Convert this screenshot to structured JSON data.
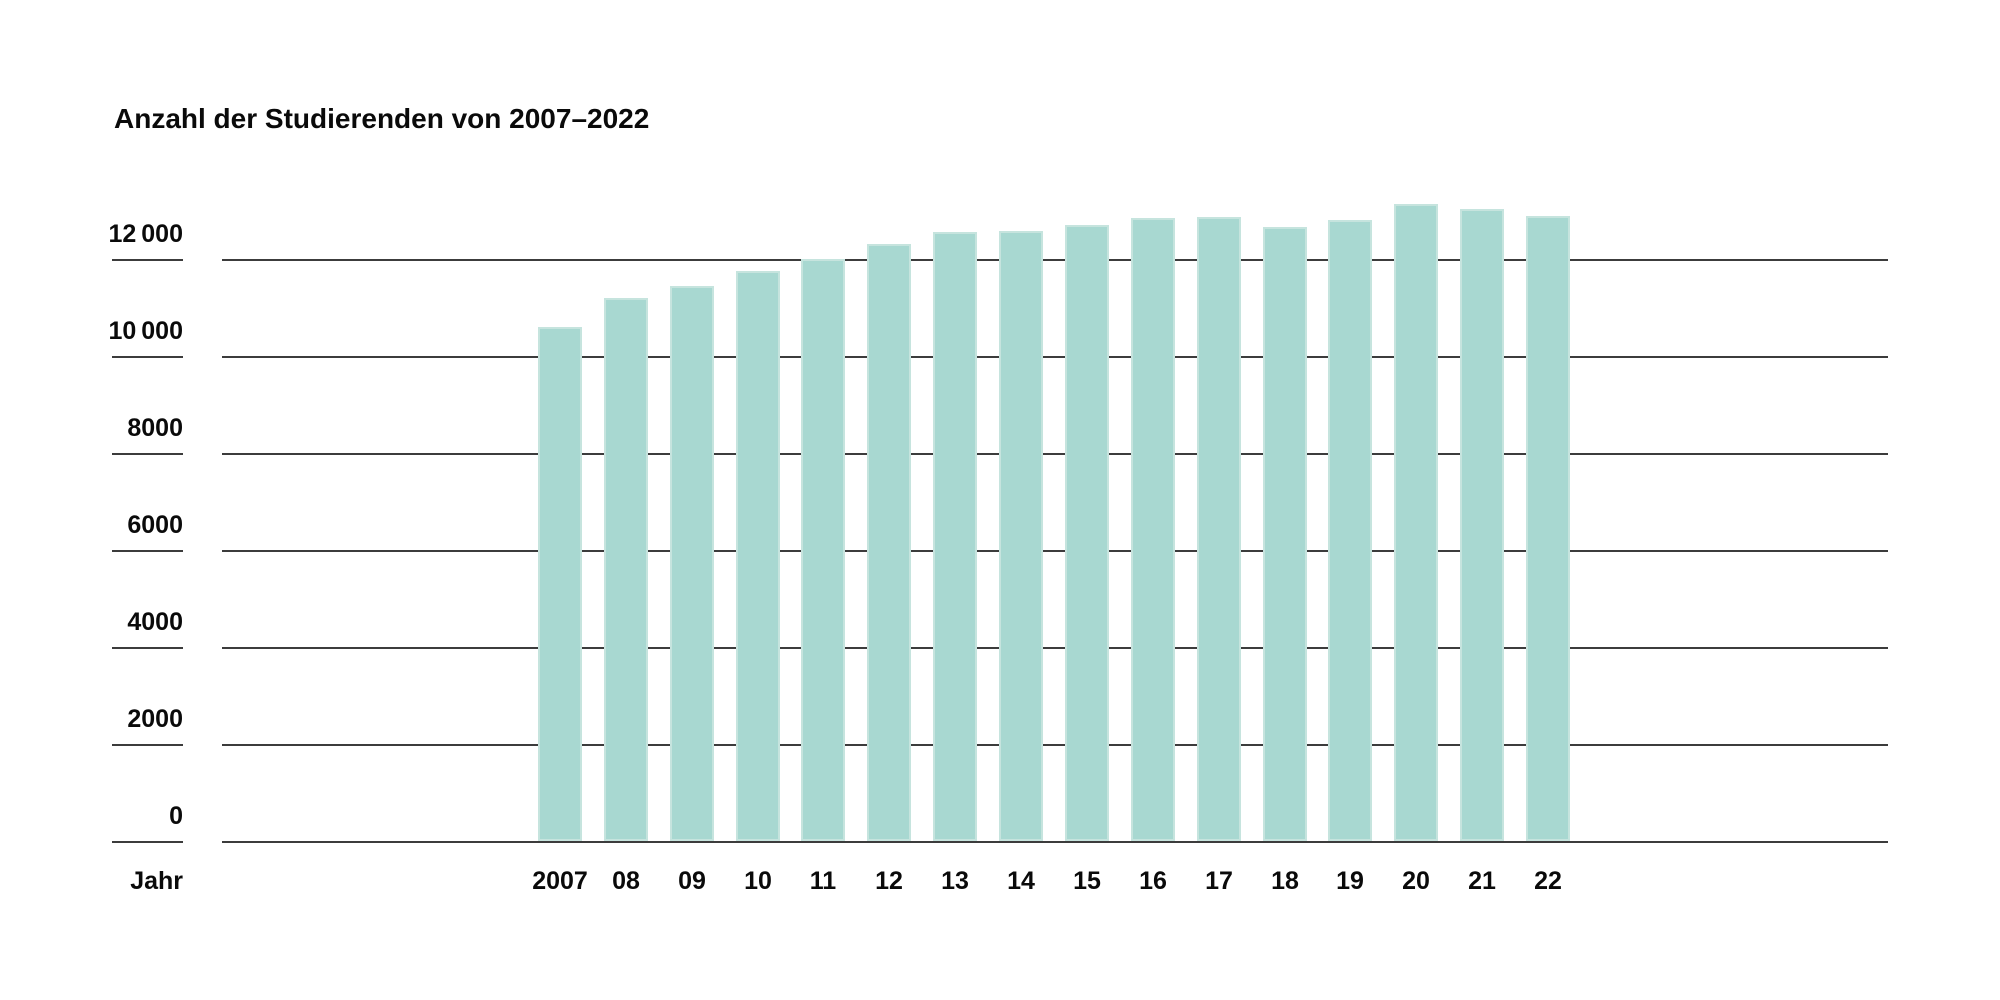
{
  "colors": {
    "background": "#ffffff",
    "text": "#0a0a0a",
    "gridline": "#3c3c3c",
    "bar_fill": "#a8d8d1",
    "bar_edge": "#c6e4de"
  },
  "chart_data": {
    "type": "bar",
    "title": "Anzahl der Studierenden von 2007–2022",
    "xlabel": "Jahr",
    "ylabel": "",
    "categories": [
      "2007",
      "08",
      "09",
      "10",
      "11",
      "12",
      "13",
      "14",
      "15",
      "16",
      "17",
      "18",
      "19",
      "20",
      "21",
      "22"
    ],
    "values": [
      10600,
      11200,
      11450,
      11750,
      12000,
      12300,
      12550,
      12570,
      12700,
      12840,
      12860,
      12660,
      12800,
      13130,
      13030,
      12890
    ],
    "series": [
      {
        "name": "Anzahl der Studierenden",
        "values": [
          10600,
          11200,
          11450,
          11750,
          12000,
          12300,
          12550,
          12570,
          12700,
          12840,
          12860,
          12660,
          12800,
          13130,
          13030,
          12890
        ]
      }
    ],
    "yticks": [
      {
        "label": "12 000",
        "value": 12000
      },
      {
        "label": "10 000",
        "value": 10000
      },
      {
        "label": "8000",
        "value": 8000
      },
      {
        "label": "6000",
        "value": 6000
      },
      {
        "label": "4000",
        "value": 4000
      },
      {
        "label": "2000",
        "value": 2000
      },
      {
        "label": "0",
        "value": 0
      }
    ],
    "ylim": [
      0,
      12000
    ],
    "ytick_interval": 2000,
    "bars_exceed_top_gridline": true,
    "grid": "horizontal",
    "legend_position": "none"
  }
}
